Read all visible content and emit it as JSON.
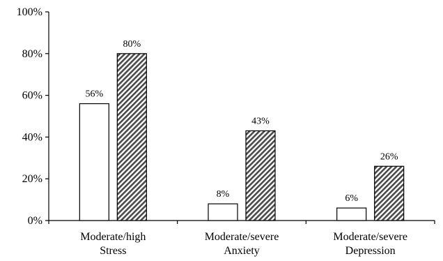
{
  "chart_data": {
    "type": "bar",
    "categories": [
      [
        "Moderate/high",
        "Stress"
      ],
      [
        "Moderate/severe",
        "Anxiety"
      ],
      [
        "Moderate/severe",
        "Depression"
      ]
    ],
    "series": [
      {
        "values": [
          56,
          8,
          6
        ],
        "value_labels": [
          "56%",
          "8%",
          "6%"
        ],
        "fill": "#ffffff",
        "pattern": "none"
      },
      {
        "values": [
          80,
          43,
          26
        ],
        "value_labels": [
          "80%",
          "43%",
          "26%"
        ],
        "fill": "#555555",
        "pattern": "diagonal-hatch"
      }
    ],
    "yaxis": {
      "ticks": [
        0,
        20,
        40,
        60,
        80,
        100
      ],
      "tick_labels": [
        "0%",
        "20%",
        "40%",
        "60%",
        "80%",
        "100%"
      ]
    },
    "ylim": [
      0,
      100
    ],
    "grid": false,
    "legend": "none",
    "title": "",
    "xlabel": "",
    "ylabel": ""
  }
}
